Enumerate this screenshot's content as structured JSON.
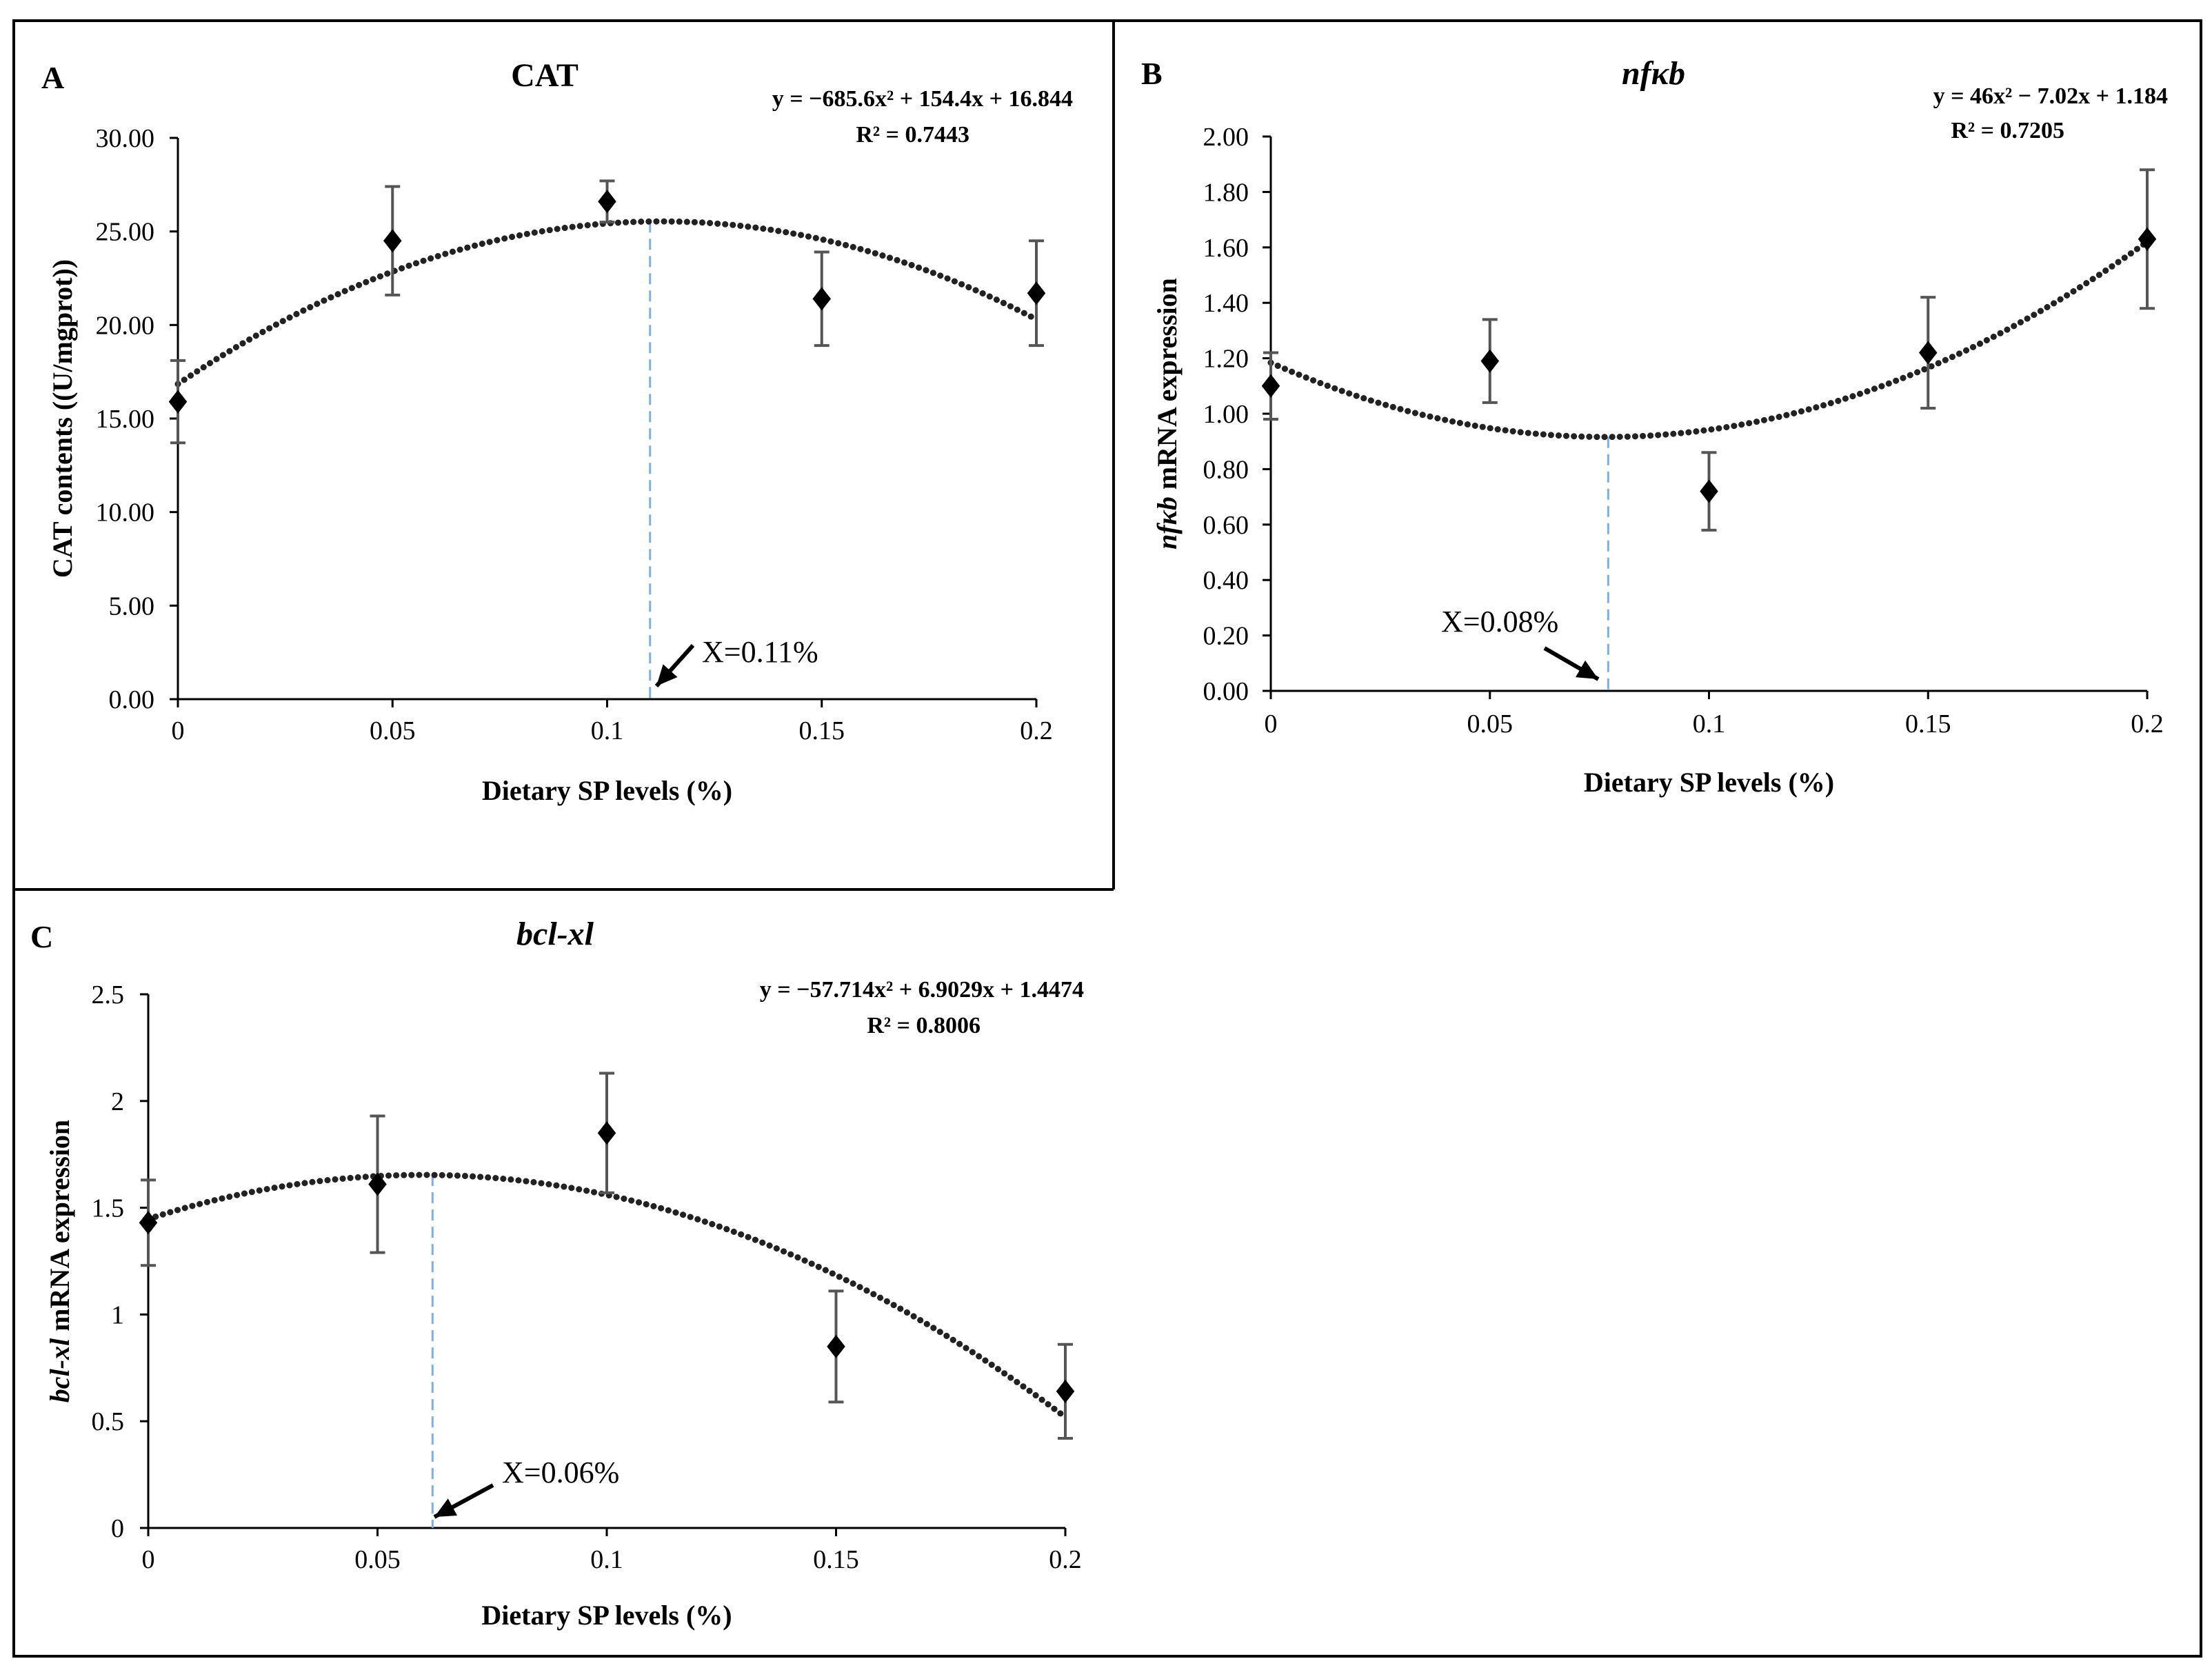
{
  "chart_data": [
    {
      "id": "A",
      "type": "scatter",
      "panel_label": "A",
      "title": "CAT",
      "title_italic": false,
      "xlabel": "Dietary SP levels (%)",
      "ylabel": "CAT contents ((U/mgprot))",
      "ylabel_italic_part": "",
      "ylabel_rest": "CAT contents ((U/mgprot))",
      "x": [
        0,
        0.05,
        0.1,
        0.15,
        0.2
      ],
      "x_tick_labels": [
        "0",
        "0.05",
        "0.1",
        "0.15",
        "0.2"
      ],
      "xlim": [
        0,
        0.2
      ],
      "ylim": [
        0,
        30
      ],
      "y_ticks": [
        0,
        5,
        10,
        15,
        20,
        25,
        30
      ],
      "y_tick_labels": [
        "0.00",
        "5.00",
        "10.00",
        "15.00",
        "20.00",
        "25.00",
        "30.00"
      ],
      "values": [
        15.9,
        24.5,
        26.6,
        21.4,
        21.7
      ],
      "error": [
        2.2,
        2.9,
        1.1,
        2.5,
        2.8
      ],
      "trendline": {
        "type": "polynomial",
        "a": -685.6,
        "b": 154.4,
        "c": 16.844
      },
      "equation": "y = −685.6x² + 154.4x + 16.844",
      "r_squared": "R² = 0.7443",
      "optimum_x": 0.11,
      "optimum_label": "X=0.11%"
    },
    {
      "id": "B",
      "type": "scatter",
      "panel_label": "B",
      "title": "nfκb",
      "title_italic": true,
      "xlabel": "Dietary SP levels (%)",
      "ylabel": "nfκb mRNA expression",
      "ylabel_italic_part": "nfκb",
      "ylabel_rest": " mRNA expression",
      "x": [
        0,
        0.05,
        0.1,
        0.15,
        0.2
      ],
      "x_tick_labels": [
        "0",
        "0.05",
        "0.1",
        "0.15",
        "0.2"
      ],
      "xlim": [
        0,
        0.2
      ],
      "ylim": [
        0,
        2
      ],
      "y_ticks": [
        0,
        0.2,
        0.4,
        0.6,
        0.8,
        1.0,
        1.2,
        1.4,
        1.6,
        1.8,
        2.0
      ],
      "y_tick_labels": [
        "0.00",
        "0.20",
        "0.40",
        "0.60",
        "0.80",
        "1.00",
        "1.20",
        "1.40",
        "1.60",
        "1.80",
        "2.00"
      ],
      "values": [
        1.1,
        1.19,
        0.72,
        1.22,
        1.63
      ],
      "error": [
        0.12,
        0.15,
        0.14,
        0.2,
        0.25
      ],
      "trendline": {
        "type": "polynomial",
        "a": 46,
        "b": -7.02,
        "c": 1.184
      },
      "equation": "y = 46x² − 7.02x + 1.184",
      "r_squared": "R² = 0.7205",
      "optimum_x": 0.077,
      "optimum_label": "X=0.08%"
    },
    {
      "id": "C",
      "type": "scatter",
      "panel_label": "C",
      "title": "bcl-xl",
      "title_italic": true,
      "xlabel": "Dietary SP levels (%)",
      "ylabel": "bcl-xl mRNA expression",
      "ylabel_italic_part": "bcl-xl",
      "ylabel_rest": " mRNA expression",
      "x": [
        0,
        0.05,
        0.1,
        0.15,
        0.2
      ],
      "x_tick_labels": [
        "0",
        "0.05",
        "0.1",
        "0.15",
        "0.2"
      ],
      "xlim": [
        0,
        0.2
      ],
      "ylim": [
        0,
        2.5
      ],
      "y_ticks": [
        0,
        0.5,
        1,
        1.5,
        2,
        2.5
      ],
      "y_tick_labels": [
        "0",
        "0.5",
        "1",
        "1.5",
        "2",
        "2.5"
      ],
      "values": [
        1.43,
        1.61,
        1.85,
        0.85,
        0.64
      ],
      "error": [
        0.2,
        0.32,
        0.28,
        0.26,
        0.22
      ],
      "trendline": {
        "type": "polynomial",
        "a": -57.714,
        "b": 6.9029,
        "c": 1.4474
      },
      "equation": "y = −57.714x² + 6.9029x + 1.4474",
      "r_squared": "R² = 0.8006",
      "optimum_x": 0.062,
      "optimum_label": "X=0.06%"
    }
  ]
}
